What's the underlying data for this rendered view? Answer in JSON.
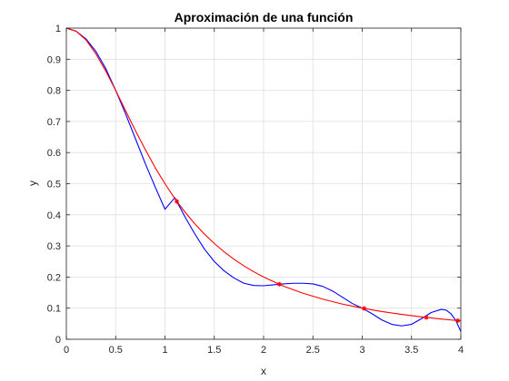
{
  "chart_data": {
    "type": "line",
    "title": "Aproximación de una función",
    "xlabel": "x",
    "ylabel": "y",
    "xlim": [
      0,
      4
    ],
    "ylim": [
      0,
      1
    ],
    "xticks": [
      "0",
      "0.5",
      "1",
      "1.5",
      "2",
      "2.5",
      "3",
      "3.5",
      "4"
    ],
    "yticks": [
      "0",
      "0.1",
      "0.2",
      "0.3",
      "0.4",
      "0.5",
      "0.6",
      "0.7",
      "0.8",
      "0.9",
      "1"
    ],
    "grid": true,
    "series": [
      {
        "color": "#0000ff",
        "marker": "none",
        "x": [
          0,
          0.1,
          0.2,
          0.3,
          0.4,
          0.5,
          0.6,
          0.7,
          0.8,
          0.9,
          1.0,
          1.1,
          1.2,
          1.3,
          1.4,
          1.5,
          1.6,
          1.7,
          1.8,
          1.9,
          2.0,
          2.1,
          2.2,
          2.3,
          2.4,
          2.5,
          2.6,
          2.7,
          2.8,
          2.9,
          3.0,
          3.1,
          3.2,
          3.3,
          3.4,
          3.5,
          3.6,
          3.7,
          3.8,
          3.85,
          3.9,
          3.95,
          4.0
        ],
        "y": [
          1.0,
          0.99,
          0.965,
          0.925,
          0.87,
          0.8,
          0.725,
          0.645,
          0.565,
          0.49,
          0.418,
          0.455,
          0.395,
          0.34,
          0.29,
          0.25,
          0.22,
          0.197,
          0.18,
          0.173,
          0.172,
          0.175,
          0.178,
          0.18,
          0.18,
          0.178,
          0.17,
          0.155,
          0.135,
          0.115,
          0.1,
          0.082,
          0.062,
          0.048,
          0.043,
          0.048,
          0.066,
          0.086,
          0.096,
          0.094,
          0.082,
          0.06,
          0.025
        ]
      },
      {
        "color": "#ff0000",
        "marker": "none",
        "x": [
          0,
          0.1,
          0.2,
          0.3,
          0.4,
          0.5,
          0.6,
          0.7,
          0.8,
          0.9,
          1.0,
          1.1,
          1.2,
          1.3,
          1.4,
          1.5,
          1.6,
          1.7,
          1.8,
          1.9,
          2.0,
          2.2,
          2.4,
          2.6,
          2.8,
          3.0,
          3.2,
          3.4,
          3.6,
          3.8,
          4.0
        ],
        "y": [
          1.0,
          0.99,
          0.962,
          0.917,
          0.862,
          0.8,
          0.735,
          0.671,
          0.61,
          0.552,
          0.5,
          0.452,
          0.41,
          0.372,
          0.338,
          0.308,
          0.281,
          0.257,
          0.236,
          0.217,
          0.2,
          0.171,
          0.148,
          0.129,
          0.113,
          0.1,
          0.089,
          0.08,
          0.072,
          0.065,
          0.059
        ]
      },
      {
        "color": "#ff0000",
        "marker": "*",
        "line": "none",
        "x": [
          1.12,
          2.16,
          3.02,
          3.65,
          3.97
        ],
        "y": [
          0.443,
          0.177,
          0.099,
          0.07,
          0.06
        ]
      }
    ]
  }
}
